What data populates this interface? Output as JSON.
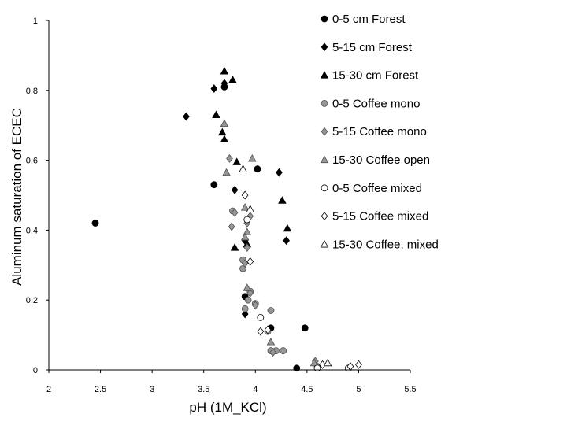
{
  "chart_data": {
    "type": "scatter",
    "title": "",
    "xlabel": "pH (1M_KCl)",
    "ylabel": "Aluminum saturation of ECEC",
    "xlim": [
      2,
      5.5
    ],
    "ylim": [
      0,
      1
    ],
    "x_ticks": [
      2,
      2.5,
      3,
      3.5,
      4,
      4.5,
      5,
      5.5
    ],
    "y_ticks": [
      0,
      0.2,
      0.4,
      0.6,
      0.8,
      1
    ],
    "x_tick_labels": [
      "2",
      "2.5",
      "3",
      "3.5",
      "4",
      "4.5",
      "5",
      "5.5"
    ],
    "y_tick_labels": [
      "0",
      "0.2",
      "0.4",
      "0.6",
      "0.8",
      "1"
    ],
    "grid": false,
    "legend_position": "right",
    "series": [
      {
        "name": "0-5 cm Forest",
        "marker": "circle",
        "fill": "#000000",
        "stroke": "#000000",
        "points": [
          [
            2.45,
            0.42
          ],
          [
            3.6,
            0.53
          ],
          [
            3.7,
            0.81
          ],
          [
            4.02,
            0.575
          ],
          [
            3.9,
            0.21
          ],
          [
            4.15,
            0.12
          ],
          [
            4.48,
            0.12
          ],
          [
            4.4,
            0.005
          ]
        ]
      },
      {
        "name": "5-15 cm Forest",
        "marker": "diamond",
        "fill": "#000000",
        "stroke": "#000000",
        "points": [
          [
            3.33,
            0.725
          ],
          [
            3.6,
            0.805
          ],
          [
            3.7,
            0.82
          ],
          [
            3.8,
            0.515
          ],
          [
            4.23,
            0.565
          ],
          [
            3.9,
            0.37
          ],
          [
            3.9,
            0.16
          ],
          [
            4.3,
            0.37
          ]
        ]
      },
      {
        "name": "15-30 cm Forest",
        "marker": "triangle",
        "fill": "#000000",
        "stroke": "#000000",
        "points": [
          [
            3.7,
            0.855
          ],
          [
            3.78,
            0.83
          ],
          [
            3.62,
            0.73
          ],
          [
            3.68,
            0.68
          ],
          [
            3.7,
            0.66
          ],
          [
            3.82,
            0.595
          ],
          [
            3.8,
            0.35
          ],
          [
            4.26,
            0.485
          ],
          [
            4.31,
            0.405
          ],
          [
            3.92,
            0.36
          ]
        ]
      },
      {
        "name": "0-5 Coffee mono",
        "marker": "circle",
        "fill": "#969696",
        "stroke": "#505050",
        "points": [
          [
            3.78,
            0.455
          ],
          [
            3.88,
            0.315
          ],
          [
            3.88,
            0.29
          ],
          [
            3.95,
            0.225
          ],
          [
            3.93,
            0.2
          ],
          [
            4.0,
            0.19
          ],
          [
            3.9,
            0.175
          ],
          [
            4.15,
            0.17
          ],
          [
            4.12,
            0.11
          ],
          [
            4.15,
            0.055
          ],
          [
            4.2,
            0.055
          ],
          [
            4.27,
            0.055
          ],
          [
            4.6,
            0.01
          ]
        ]
      },
      {
        "name": "5-15 Coffee mono",
        "marker": "diamond",
        "fill": "#969696",
        "stroke": "#505050",
        "points": [
          [
            3.75,
            0.605
          ],
          [
            3.77,
            0.41
          ],
          [
            3.8,
            0.45
          ],
          [
            3.92,
            0.42
          ],
          [
            3.95,
            0.44
          ],
          [
            3.92,
            0.35
          ],
          [
            3.9,
            0.305
          ],
          [
            3.95,
            0.22
          ],
          [
            4.0,
            0.185
          ],
          [
            4.17,
            0.05
          ],
          [
            4.58,
            0.025
          ]
        ]
      },
      {
        "name": "15-30 Coffee open",
        "marker": "triangle",
        "fill": "#969696",
        "stroke": "#505050",
        "points": [
          [
            3.7,
            0.705
          ],
          [
            3.97,
            0.605
          ],
          [
            3.72,
            0.565
          ],
          [
            3.9,
            0.465
          ],
          [
            3.92,
            0.395
          ],
          [
            3.9,
            0.38
          ],
          [
            3.92,
            0.235
          ],
          [
            4.15,
            0.08
          ],
          [
            4.57,
            0.02
          ]
        ]
      },
      {
        "name": "0-5 Coffee mixed",
        "marker": "circle",
        "fill": "#ffffff",
        "stroke": "#000000",
        "points": [
          [
            3.92,
            0.43
          ],
          [
            4.05,
            0.15
          ],
          [
            4.6,
            0.005
          ],
          [
            4.9,
            0.005
          ]
        ]
      },
      {
        "name": "5-15 Coffee mixed",
        "marker": "diamond",
        "fill": "#ffffff",
        "stroke": "#000000",
        "points": [
          [
            3.9,
            0.5
          ],
          [
            3.95,
            0.31
          ],
          [
            4.05,
            0.11
          ],
          [
            4.12,
            0.115
          ],
          [
            4.65,
            0.015
          ],
          [
            4.92,
            0.01
          ],
          [
            5.0,
            0.015
          ]
        ]
      },
      {
        "name": "15-30 Coffee, mixed",
        "marker": "triangle",
        "fill": "#ffffff",
        "stroke": "#000000",
        "points": [
          [
            3.88,
            0.575
          ],
          [
            3.95,
            0.46
          ],
          [
            4.7,
            0.02
          ]
        ]
      }
    ]
  }
}
